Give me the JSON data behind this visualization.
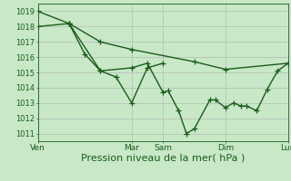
{
  "background_color": "#c8e8c8",
  "grid_color": "#b0b0b0",
  "line_color": "#1a5c1a",
  "marker": "+",
  "marker_size": 4,
  "line_width": 1.0,
  "xlabel": "Pression niveau de la mer( hPa )",
  "xlabel_fontsize": 8,
  "ylim": [
    1010.5,
    1019.5
  ],
  "yticks": [
    1011,
    1012,
    1013,
    1014,
    1015,
    1016,
    1017,
    1018,
    1019
  ],
  "ytick_fontsize": 6,
  "xtick_fontsize": 6.5,
  "x_day_labels": [
    "Ven",
    "Mar",
    "Sam",
    "Dim",
    "Lun"
  ],
  "x_day_positions": [
    0,
    36,
    48,
    72,
    96
  ],
  "xlim": [
    0,
    96
  ],
  "series": [
    [
      1019.0,
      1018.2,
      1018.2,
      1017.0,
      1016.5,
      1015.7,
      1015.2,
      1015.6
    ],
    [
      1018.0,
      1018.2,
      1016.2,
      1015.1,
      1015.3,
      1015.6,
      1013.7,
      1013.8,
      1012.5,
      1011.0,
      1011.3,
      1013.2,
      1013.2,
      1012.7,
      1013.0,
      1012.8,
      1012.8,
      1012.5,
      1013.9,
      1015.1,
      1015.6
    ],
    [
      1018.2,
      1015.1,
      1014.7,
      1013.0,
      1015.3,
      1015.6
    ]
  ],
  "series_x": [
    [
      0,
      12,
      12,
      24,
      36,
      60,
      72,
      96
    ],
    [
      0,
      12,
      18,
      24,
      36,
      42,
      48,
      50,
      54,
      57,
      60,
      66,
      68,
      72,
      75,
      78,
      80,
      84,
      88,
      92,
      96
    ],
    [
      12,
      24,
      30,
      36,
      42,
      48
    ]
  ]
}
